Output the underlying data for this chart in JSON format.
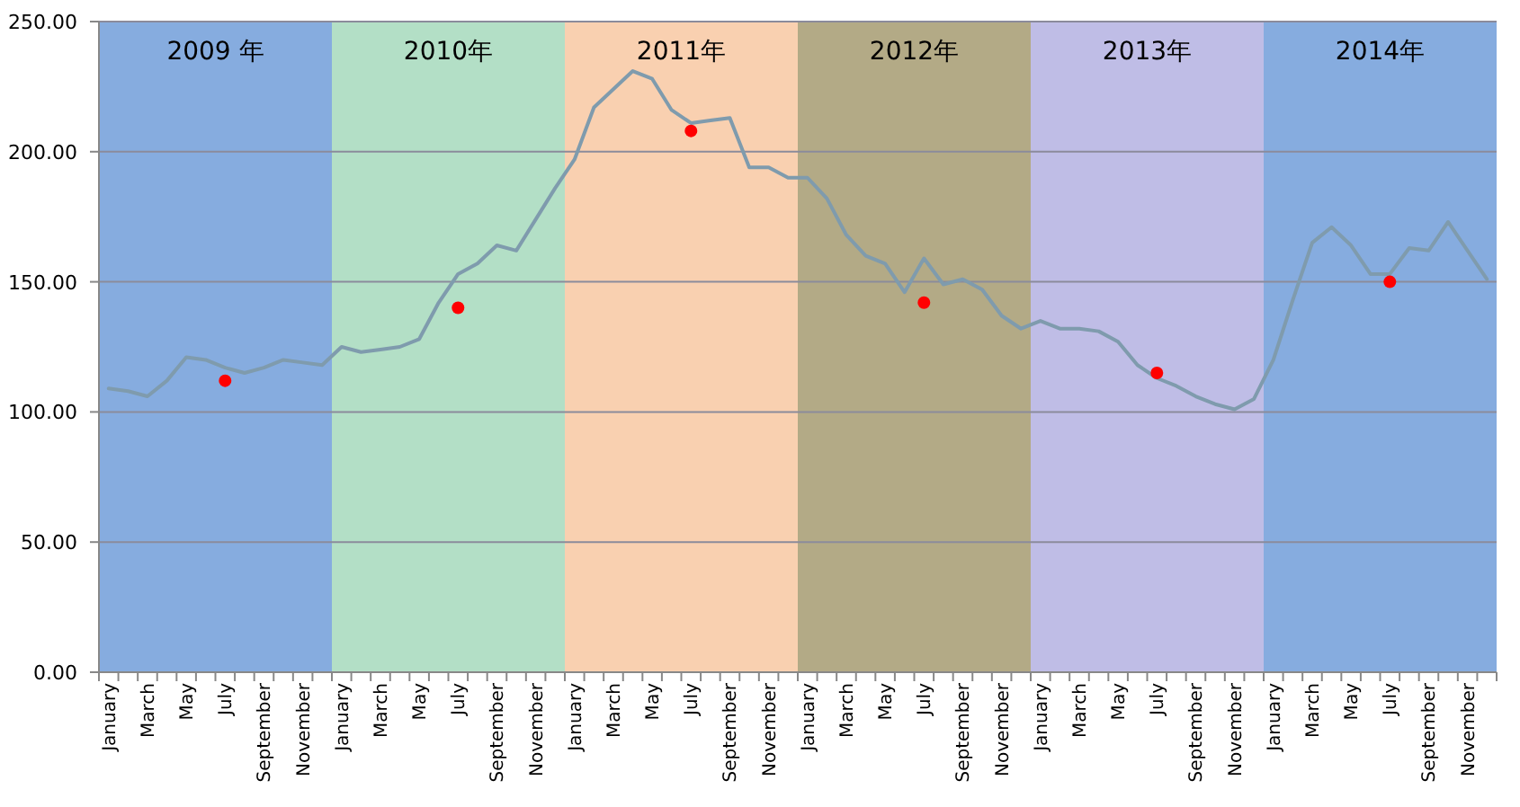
{
  "chart_data": {
    "type": "line",
    "categories": [
      "January",
      null,
      "March",
      null,
      "May",
      null,
      "July",
      null,
      "September",
      null,
      "November",
      null,
      "January",
      null,
      "March",
      null,
      "May",
      null,
      "July",
      null,
      "September",
      null,
      "November",
      null,
      "January",
      null,
      "March",
      null,
      "May",
      null,
      "July",
      null,
      "September",
      null,
      "November",
      null,
      "January",
      null,
      "March",
      null,
      "May",
      null,
      "July",
      null,
      "September",
      null,
      "November",
      null,
      "January",
      null,
      "March",
      null,
      "May",
      null,
      "July",
      null,
      "September",
      null,
      "November",
      null,
      "January",
      null,
      "March",
      null,
      "May",
      null,
      "July",
      null,
      "September",
      null,
      "November",
      null
    ],
    "series": [
      {
        "color": "#7f9bad",
        "marker": "none",
        "values": [
          109,
          108,
          106,
          112,
          121,
          120,
          117,
          115,
          117,
          120,
          119,
          118,
          125,
          123,
          124,
          125,
          128,
          142,
          153,
          157,
          164,
          162,
          174,
          186,
          197,
          217,
          224,
          231,
          228,
          216,
          211,
          212,
          213,
          194,
          194,
          190,
          190,
          182,
          168,
          160,
          157,
          146,
          159,
          149,
          151,
          147,
          137,
          132,
          135,
          132,
          132,
          131,
          127,
          118,
          113,
          110,
          106,
          103,
          101,
          105,
          120,
          143,
          165,
          171,
          164,
          153,
          153,
          163,
          162,
          173,
          162,
          151
        ]
      },
      {
        "type": "scatter",
        "color": "#ff0000",
        "marker": "circle",
        "values": [
          null,
          null,
          null,
          null,
          null,
          null,
          112,
          null,
          null,
          null,
          null,
          null,
          null,
          null,
          null,
          null,
          null,
          null,
          140,
          null,
          null,
          null,
          null,
          null,
          null,
          null,
          null,
          null,
          null,
          null,
          208,
          null,
          null,
          null,
          null,
          null,
          null,
          null,
          null,
          null,
          null,
          null,
          142,
          null,
          null,
          null,
          null,
          null,
          null,
          null,
          null,
          null,
          null,
          null,
          115,
          null,
          null,
          null,
          null,
          null,
          null,
          null,
          null,
          null,
          null,
          null,
          150,
          null,
          null,
          null,
          null,
          null
        ]
      }
    ],
    "ylim": [
      0,
      250
    ],
    "yticks": [
      {
        "value": 0,
        "label": "0.00"
      },
      {
        "value": 50,
        "label": "50.00"
      },
      {
        "value": 100,
        "label": "100.00"
      },
      {
        "value": 150,
        "label": "150.00"
      },
      {
        "value": 200,
        "label": "200.00"
      },
      {
        "value": 250,
        "label": "250.00"
      }
    ],
    "grid": "y",
    "annotations": [
      "2009 年",
      "2010年",
      "2011年",
      "2012年",
      "2013年",
      "2014年"
    ]
  }
}
